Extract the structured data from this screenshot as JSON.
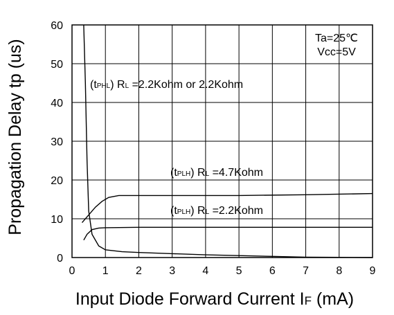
{
  "chart_data": {
    "type": "line",
    "xlabel_main": "Input Diode Forward Current I",
    "xlabel_sub": "F",
    "xlabel_unit": " (mA)",
    "ylabel": "Propagation Delay tp (us)",
    "xlim": [
      0,
      9
    ],
    "ylim": [
      0,
      60
    ],
    "xticks": [
      0,
      1,
      2,
      3,
      4,
      5,
      6,
      7,
      8,
      9
    ],
    "yticks": [
      0,
      10,
      20,
      30,
      40,
      50,
      60
    ],
    "grid": true,
    "conditions": [
      "Ta=25℃",
      "Vcc=5V"
    ],
    "series": [
      {
        "label_prefix": "(t",
        "label_sub": "PHL",
        "label_mid": ") R",
        "label_sub2": "L",
        "label_rest": " =2.2Kohm or 2.2Kohm",
        "points": [
          [
            0.35,
            60
          ],
          [
            0.4,
            45
          ],
          [
            0.45,
            25
          ],
          [
            0.5,
            12
          ],
          [
            0.6,
            6
          ],
          [
            0.8,
            3
          ],
          [
            1.0,
            2
          ],
          [
            1.5,
            1.5
          ],
          [
            2,
            1.3
          ],
          [
            3,
            1.0
          ],
          [
            4,
            0.7
          ],
          [
            5,
            0.5
          ],
          [
            6,
            0.3
          ],
          [
            7,
            0.1
          ],
          [
            8,
            0.05
          ],
          [
            9,
            0
          ]
        ]
      },
      {
        "label_prefix": "(t",
        "label_sub": "PLH",
        "label_mid": ") R",
        "label_sub2": "L",
        "label_rest": " =4.7Kohm",
        "points": [
          [
            0.3,
            9
          ],
          [
            0.5,
            11
          ],
          [
            0.7,
            13
          ],
          [
            0.9,
            14.5
          ],
          [
            1.1,
            15.5
          ],
          [
            1.4,
            16
          ],
          [
            2,
            16
          ],
          [
            3,
            16
          ],
          [
            5,
            16
          ],
          [
            7,
            16.2
          ],
          [
            9,
            16.5
          ]
        ]
      },
      {
        "label_prefix": "(t",
        "label_sub": "PLH",
        "label_mid": ") R",
        "label_sub2": "L",
        "label_rest": " =2.2Kohm",
        "points": [
          [
            0.35,
            4.5
          ],
          [
            0.45,
            6
          ],
          [
            0.6,
            7.2
          ],
          [
            0.8,
            7.6
          ],
          [
            1.0,
            7.7
          ],
          [
            2,
            7.8
          ],
          [
            4,
            7.8
          ],
          [
            6,
            7.8
          ],
          [
            9,
            7.8
          ]
        ]
      }
    ]
  }
}
